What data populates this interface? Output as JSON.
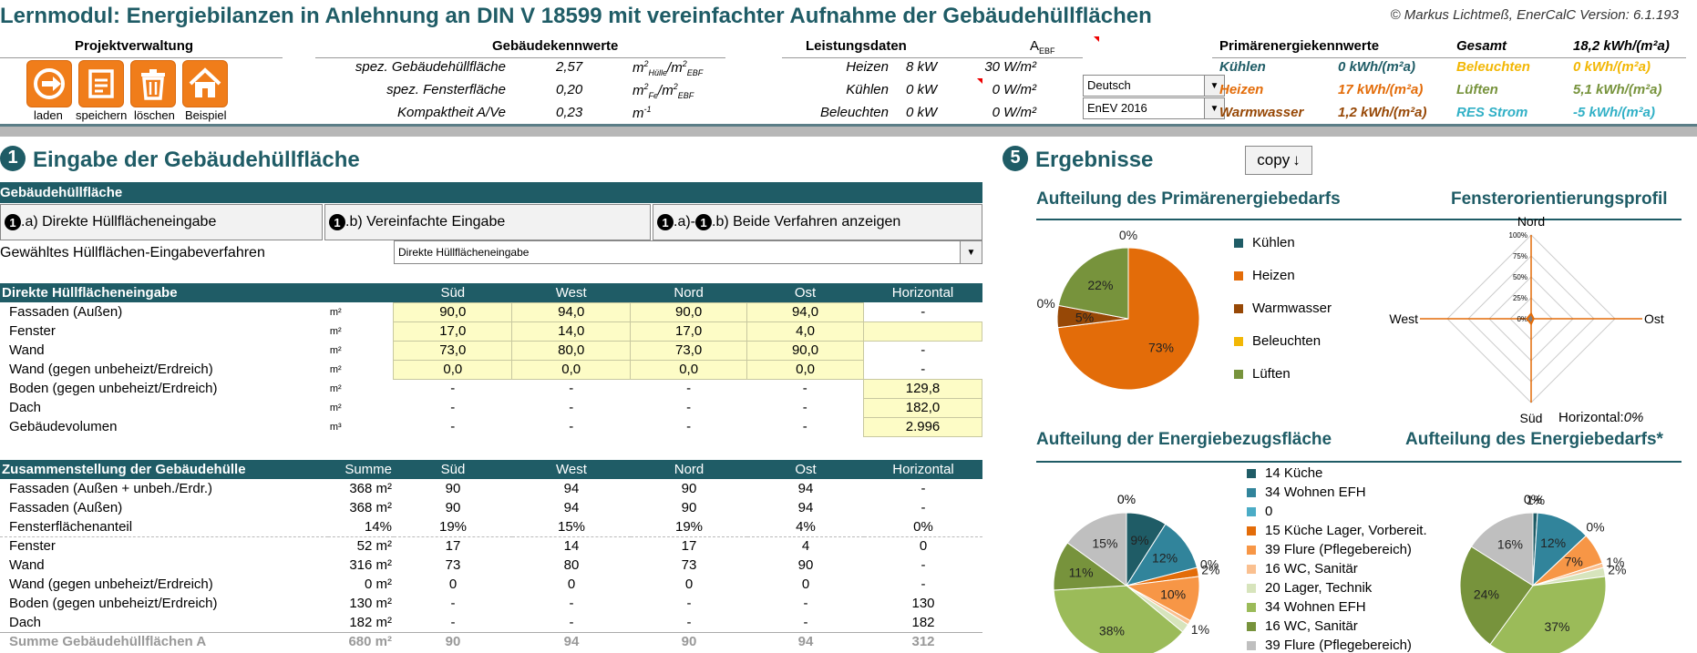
{
  "title": "Lernmodul: Energiebilanzen in Anlehnung an DIN V 18599 mit vereinfachter Aufnahme der Gebäudehüllflächen",
  "copyright": "© Markus Lichtmeß, EnerCalC Version: 6.1.193",
  "header": {
    "projekt": "Projektverwaltung",
    "buttons": [
      {
        "label": "laden",
        "icon": "load-icon"
      },
      {
        "label": "speichern",
        "icon": "save-icon"
      },
      {
        "label": "löschen",
        "icon": "trash-icon"
      },
      {
        "label": "Beispiel",
        "icon": "home-icon"
      }
    ],
    "gebaeude": {
      "label": "Gebäudekennwerte",
      "rows": [
        {
          "name": "spez. Gebäudehüllfläche",
          "value": "2,57",
          "unit": "m",
          "unit_sup": "2",
          "unit_sub": "Hülle",
          "unit_tail": "/m",
          "unit_sup2": "2",
          "unit_sub2": "EBF"
        },
        {
          "name": "spez. Fensterfläche",
          "value": "0,20",
          "unit": "m",
          "unit_sup": "2",
          "unit_sub": "Fe",
          "unit_tail": "/m",
          "unit_sup2": "2",
          "unit_sub2": "EBF"
        },
        {
          "name": "Kompaktheit A/Ve",
          "value": "0,23",
          "unit": "m",
          "unit_sup": "-1",
          "unit_sub": "",
          "unit_tail": "",
          "unit_sup2": "",
          "unit_sub2": ""
        }
      ]
    },
    "leistung": {
      "label": "Leistungsdaten",
      "aebf": "A",
      "aebf_sub": "EBF",
      "rows": [
        {
          "name": "Heizen",
          "kw": "8 kW",
          "wm2": "30 W/m²"
        },
        {
          "name": "Kühlen",
          "kw": "0 kW",
          "wm2": "0 W/m²"
        },
        {
          "name": "Beleuchten",
          "kw": "0 kW",
          "wm2": "0 W/m²"
        }
      ]
    },
    "lang_select": "Deutsch",
    "norm_select": "EnEV 2016",
    "primaer": {
      "label": "Primärenergiekennwerte",
      "gesamt_label": "Gesamt",
      "gesamt_value": "18,2 kWh/(m²a)",
      "left": [
        {
          "name": "Kühlen",
          "value": "0 kWh/(m²a)",
          "color": "#1f5c66"
        },
        {
          "name": "Heizen",
          "value": "17 kWh/(m²a)",
          "color": "#e36c09"
        },
        {
          "name": "Warmwasser",
          "value": "1,2 kWh/(m²a)",
          "color": "#974806"
        }
      ],
      "right": [
        {
          "name": "Beleuchten",
          "value": "0 kWh/(m²a)",
          "color": "#f2b705"
        },
        {
          "name": "Lüften",
          "value": "5,1 kWh/(m²a)",
          "color": "#77933c"
        },
        {
          "name": "RES Strom",
          "value": "-5 kWh/(m²a)",
          "color": "#31b0c6"
        }
      ]
    }
  },
  "left": {
    "section_title": "Eingabe der Gebäudehüllfläche",
    "section_num": "1",
    "bar_label": "Gebäudehüllfläche",
    "tabs": [
      {
        "num": "1",
        "label": ".a) Direkte Hüllflächeneingabe"
      },
      {
        "num": "1",
        "label": ".b) Vereinfachte Eingabe"
      },
      {
        "num": "1",
        "num2": "1",
        "label_a": ".a)-",
        "label": ".b) Beide Verfahren anzeigen"
      }
    ],
    "verfahren_label": "Gewähltes Hüllflächen-Eingabeverfahren",
    "verfahren_value": "Direkte Hüllflächeneingabe",
    "direkt": {
      "header": "Direkte Hüllflächeneingabe",
      "cols": [
        "Süd",
        "West",
        "Nord",
        "Ost",
        "Horizontal"
      ],
      "rows": [
        {
          "name": "Fassaden (Außen)",
          "unit": "m²",
          "vals": [
            "90,0",
            "94,0",
            "90,0",
            "94,0",
            "-"
          ]
        },
        {
          "name": "Fenster",
          "unit": "m²",
          "vals": [
            "17,0",
            "14,0",
            "17,0",
            "4,0",
            ""
          ]
        },
        {
          "name": "Wand",
          "unit": "m²",
          "vals": [
            "73,0",
            "80,0",
            "73,0",
            "90,0",
            "-"
          ]
        },
        {
          "name": "Wand (gegen unbeheizt/Erdreich)",
          "unit": "m²",
          "vals": [
            "0,0",
            "0,0",
            "0,0",
            "0,0",
            "-"
          ]
        },
        {
          "name": "Boden (gegen unbeheizt/Erdreich)",
          "unit": "m²",
          "vals": [
            "-",
            "-",
            "-",
            "-",
            "129,8"
          ]
        },
        {
          "name": "Dach",
          "unit": "m²",
          "vals": [
            "-",
            "-",
            "-",
            "-",
            "182,0"
          ]
        },
        {
          "name": "Gebäudevolumen",
          "unit": "m³",
          "vals": [
            "-",
            "-",
            "-",
            "-",
            "2.996"
          ]
        }
      ]
    },
    "zusammen": {
      "header": "Zusammenstellung der Gebäudehülle",
      "cols": [
        "Summe",
        "Süd",
        "West",
        "Nord",
        "Ost",
        "Horizontal"
      ],
      "rows": [
        {
          "name": "Fassaden (Außen + unbeh./Erdr.)",
          "vals": [
            "368 m²",
            "90",
            "94",
            "90",
            "94",
            "-"
          ]
        },
        {
          "name": "Fassaden (Außen)",
          "vals": [
            "368 m²",
            "90",
            "94",
            "90",
            "94",
            "-"
          ]
        },
        {
          "name": "Fensterflächenanteil",
          "vals": [
            "14%",
            "19%",
            "15%",
            "19%",
            "4%",
            "0%"
          ]
        },
        {
          "name": "Fenster",
          "vals": [
            "52 m²",
            "17",
            "14",
            "17",
            "4",
            "0"
          ]
        },
        {
          "name": "Wand",
          "vals": [
            "316 m²",
            "73",
            "80",
            "73",
            "90",
            "-"
          ]
        },
        {
          "name": "Wand (gegen unbeheizt/Erdreich)",
          "vals": [
            "0 m²",
            "0",
            "0",
            "0",
            "0",
            "-"
          ]
        },
        {
          "name": "Boden (gegen unbeheizt/Erdreich)",
          "vals": [
            "130 m²",
            "-",
            "-",
            "-",
            "-",
            "130"
          ]
        },
        {
          "name": "Dach",
          "vals": [
            "182 m²",
            "-",
            "-",
            "-",
            "-",
            "182"
          ]
        },
        {
          "name": "Summe Gebäudehüllflächen A",
          "vals": [
            "680 m²",
            "90",
            "94",
            "90",
            "94",
            "312"
          ]
        }
      ]
    }
  },
  "right": {
    "section_title": "Ergebnisse",
    "section_num": "5",
    "copy_label": "copy",
    "copy_icon": "arrow-down-icon"
  },
  "chart_data": [
    {
      "type": "pie",
      "title": "Aufteilung des Primärenergiebedarfs",
      "labels": [
        "Kühlen",
        "Heizen",
        "Warmwasser",
        "Beleuchten",
        "Lüften"
      ],
      "values": [
        0,
        73,
        5,
        0,
        22
      ],
      "slice_labels": [
        "0%",
        "73%",
        "5%",
        "0%",
        "22%"
      ],
      "colors": [
        "#1f5c66",
        "#e36c09",
        "#974806",
        "#f2b705",
        "#77933c"
      ],
      "legend": "right"
    },
    {
      "type": "radar",
      "title": "Fensterorientierungsprofil",
      "axes": [
        "Nord",
        "Ost",
        "Süd",
        "West"
      ],
      "ticks": [
        "0%",
        "25%",
        "50%",
        "75%",
        "100%"
      ],
      "values": [
        6,
        3,
        6,
        5
      ],
      "note_label": "Horizontal:",
      "note_value": "0%"
    },
    {
      "type": "pie",
      "title": "Aufteilung der Energiebezugsfläche",
      "labels": [
        "14 Küche",
        "34 Wohnen EFH",
        "0",
        "15 Küche Lager, Vorbereit.",
        "39 Flure (Pflegebereich)",
        "16 WC, Sanitär",
        "20 Lager, Technik",
        "34 Wohnen EFH",
        "16 WC, Sanitär",
        "39 Flure (Pflegebereich)"
      ],
      "values": [
        9,
        12,
        0,
        2,
        10,
        1,
        2,
        38,
        11,
        15
      ],
      "slice_labels": [
        "9%",
        "12%",
        "0%",
        "2%",
        "10%",
        "1%",
        "",
        "38%",
        "11%",
        "15%"
      ],
      "top_label": "0%",
      "colors": [
        "#1f5c66",
        "#31849b",
        "#4bacc6",
        "#e36c09",
        "#f79646",
        "#fac090",
        "#d7e4bc",
        "#9bbb59",
        "#77933c",
        "#bfbfbf"
      ],
      "legend": "right"
    },
    {
      "type": "pie",
      "title": "Aufteilung des Energiebedarfs*",
      "values": [
        1,
        12,
        0,
        7,
        1,
        2,
        37,
        24,
        16
      ],
      "slice_labels": [
        "1%",
        "12%",
        "0%",
        "7%",
        "1%",
        "2%",
        "37%",
        "24%",
        "16%"
      ],
      "top_label": "0%",
      "colors": [
        "#1f5c66",
        "#31849b",
        "#4bacc6",
        "#f79646",
        "#fac090",
        "#d7e4bc",
        "#9bbb59",
        "#77933c",
        "#bfbfbf"
      ]
    }
  ]
}
